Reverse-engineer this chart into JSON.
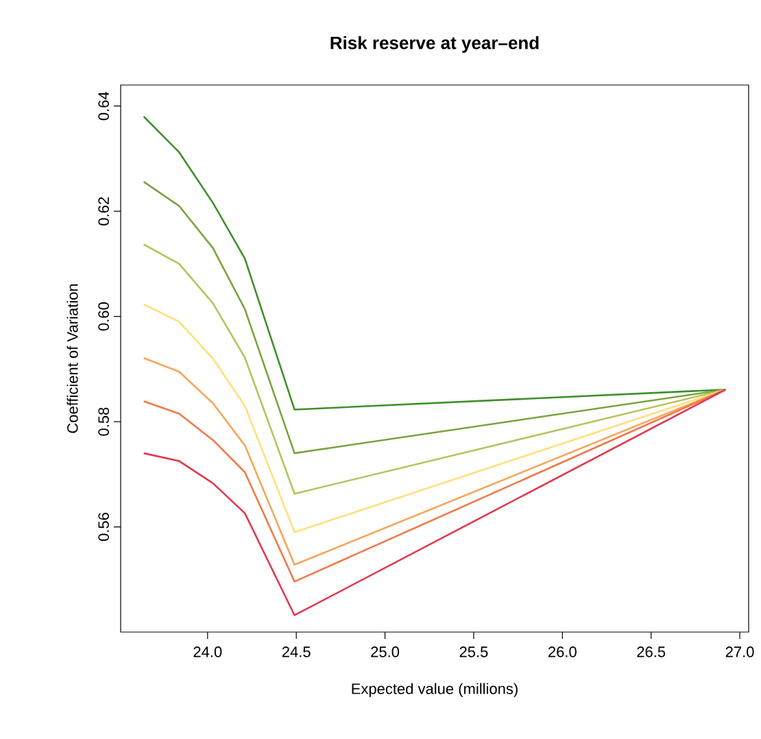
{
  "chart_data": {
    "type": "line",
    "title": "Risk reserve at year–end",
    "xlabel": "Expected value (millions)",
    "ylabel": "Coefficient of Variation",
    "xlim": [
      23.51,
      27.05
    ],
    "ylim": [
      0.54,
      0.644
    ],
    "xticks": [
      {
        "value": 24.0,
        "label": "24.0"
      },
      {
        "value": 24.5,
        "label": "24.5"
      },
      {
        "value": 25.0,
        "label": "25.0"
      },
      {
        "value": 25.5,
        "label": "25.5"
      },
      {
        "value": 26.0,
        "label": "26.0"
      },
      {
        "value": 26.5,
        "label": "26.5"
      },
      {
        "value": 27.0,
        "label": "27.0"
      }
    ],
    "yticks": [
      {
        "value": 0.56,
        "label": "0.56"
      },
      {
        "value": 0.58,
        "label": "0.58"
      },
      {
        "value": 0.6,
        "label": "0.60"
      },
      {
        "value": 0.62,
        "label": "0.62"
      },
      {
        "value": 0.64,
        "label": "0.64"
      }
    ],
    "grid": false,
    "marker": "none",
    "line_style": "solid",
    "x": [
      23.64,
      23.84,
      24.03,
      24.21,
      24.49,
      26.92
    ],
    "series": [
      {
        "color": "#3f8f2a",
        "values": [
          0.638,
          0.6312,
          0.6216,
          0.611,
          0.5823,
          0.5861
        ]
      },
      {
        "color": "#7aa33e",
        "values": [
          0.6256,
          0.621,
          0.613,
          0.6014,
          0.574,
          0.5861
        ]
      },
      {
        "color": "#b8c25e",
        "values": [
          0.6137,
          0.61,
          0.6025,
          0.5922,
          0.5663,
          0.5861
        ]
      },
      {
        "color": "#fedf7c",
        "values": [
          0.6023,
          0.599,
          0.592,
          0.583,
          0.559,
          0.5861
        ]
      },
      {
        "color": "#f7a55a",
        "values": [
          0.5921,
          0.5895,
          0.5835,
          0.5755,
          0.5528,
          0.5861
        ]
      },
      {
        "color": "#ef7a4a",
        "values": [
          0.5839,
          0.5815,
          0.5765,
          0.5704,
          0.5496,
          0.5861
        ]
      },
      {
        "color": "#e0394e",
        "values": [
          0.574,
          0.5725,
          0.5683,
          0.5626,
          0.5432,
          0.5861
        ]
      }
    ]
  }
}
